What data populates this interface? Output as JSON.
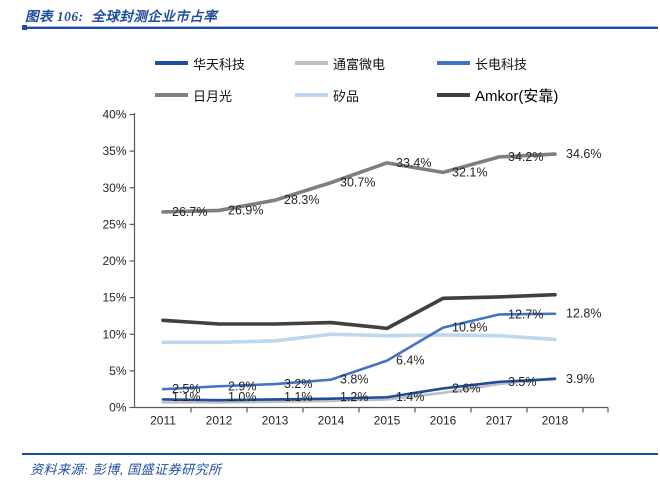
{
  "header": {
    "title": "图表 106:  全球封测企业市占率"
  },
  "footer": {
    "source": "资料来源: 彭博, 国盛证券研究所"
  },
  "colors": {
    "accent_blue": "#1F4E9F",
    "axis": "#595959",
    "label_text": "#262626"
  },
  "chart_data": {
    "type": "line",
    "title": "全球封测企业市占率",
    "x": [
      "2011",
      "2012",
      "2013",
      "2014",
      "2015",
      "2016",
      "2017",
      "2018"
    ],
    "ylim": [
      0,
      40
    ],
    "ytick_step": 5,
    "ytick_labels": [
      "0%",
      "5%",
      "10%",
      "15%",
      "20%",
      "25%",
      "30%",
      "35%",
      "40%"
    ],
    "grid": false,
    "legend_position": "top",
    "series": [
      {
        "name": "华天科技",
        "color": "#1F4E9F",
        "line_width": 2.6,
        "values": [
          1.1,
          1.0,
          1.1,
          1.2,
          1.4,
          2.6,
          3.5,
          3.9
        ],
        "point_labels": [
          "1.1%",
          "1.0%",
          "1.1%",
          "1.2%",
          "1.4%",
          "2.6%",
          "3.5%",
          "3.9%"
        ]
      },
      {
        "name": "通富微电",
        "color": "#BFBFBF",
        "line_width": 2.6,
        "values": [
          0.7,
          0.7,
          0.8,
          0.9,
          1.1,
          2.0,
          3.2,
          4.0
        ],
        "point_labels": null
      },
      {
        "name": "长电科技",
        "color": "#4472C4",
        "line_width": 2.6,
        "values": [
          2.5,
          2.9,
          3.2,
          3.8,
          6.4,
          10.9,
          12.7,
          12.8
        ],
        "point_labels": [
          "2.5%",
          "2.9%",
          "3.2%",
          "3.8%",
          "6.4%",
          "10.9%",
          "12.7%",
          "12.8%"
        ]
      },
      {
        "name": "日月光",
        "color": "#7F7F7F",
        "line_width": 3.6,
        "values": [
          26.7,
          26.9,
          28.3,
          30.7,
          33.4,
          32.1,
          34.2,
          34.6
        ],
        "point_labels": [
          "26.7%",
          "26.9%",
          "28.3%",
          "30.7%",
          "33.4%",
          "32.1%",
          "34.2%",
          "34.6%"
        ]
      },
      {
        "name": "矽品",
        "color": "#BDD7EE",
        "line_width": 3.6,
        "values": [
          8.9,
          8.9,
          9.1,
          10.0,
          9.8,
          9.9,
          9.8,
          9.3
        ],
        "point_labels": null
      },
      {
        "name": "Amkor(安靠)",
        "color": "#404040",
        "line_width": 3.6,
        "values": [
          11.9,
          11.4,
          11.4,
          11.6,
          10.8,
          14.9,
          15.1,
          15.4
        ],
        "point_labels": null
      }
    ]
  }
}
